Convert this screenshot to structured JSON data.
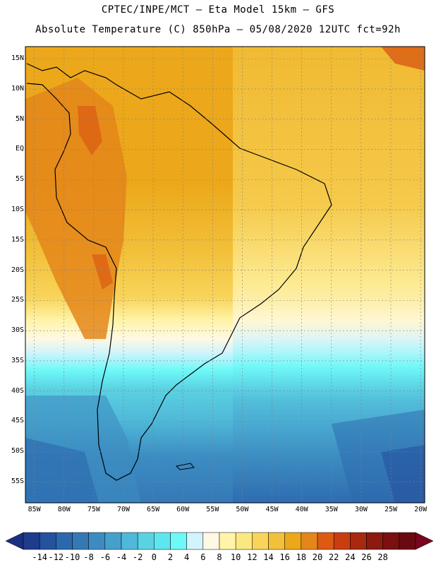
{
  "header": {
    "line1": "CPTEC/INPE/MCT –  Eta Model 15km – GFS",
    "line2": "Absolute Temperature (C) 850hPa – 05/08/2020 12UTC fct=92h"
  },
  "map": {
    "lat_ticks": [
      "15N",
      "10N",
      "5N",
      "EQ",
      "5S",
      "10S",
      "15S",
      "20S",
      "25S",
      "30S",
      "35S",
      "40S",
      "45S",
      "50S",
      "55S"
    ],
    "lon_ticks": [
      "85W",
      "80W",
      "75W",
      "70W",
      "65W",
      "60W",
      "55W",
      "50W",
      "45W",
      "40W",
      "35W",
      "30W",
      "25W",
      "20W"
    ],
    "lat_values": [
      15,
      10,
      5,
      0,
      -5,
      -10,
      -15,
      -20,
      -25,
      -30,
      -35,
      -40,
      -45,
      -50,
      -55
    ],
    "lon_values": [
      -85,
      -80,
      -75,
      -70,
      -65,
      -60,
      -55,
      -50,
      -45,
      -40,
      -35,
      -30,
      -25,
      -20
    ]
  },
  "colorbar": {
    "labels": [
      "-14",
      "-12",
      "-10",
      "-8",
      "-6",
      "-4",
      "-2",
      "0",
      "2",
      "4",
      "6",
      "8",
      "10",
      "12",
      "14",
      "16",
      "18",
      "20",
      "22",
      "24",
      "26",
      "28"
    ],
    "colors": [
      "#1e3c8c",
      "#24529e",
      "#2c68ae",
      "#3479b6",
      "#3c8cc2",
      "#46a0cc",
      "#50b8d8",
      "#5ad2e2",
      "#5ee6ee",
      "#6ef8f8",
      "#d2f4fc",
      "#fff8e2",
      "#fff4a8",
      "#fce882",
      "#f8d45a",
      "#f2c03a",
      "#eca81a",
      "#e4861a",
      "#dc5a12",
      "#c83e10",
      "#a82810",
      "#8c1a10",
      "#7a1010",
      "#6a0a10"
    ],
    "under_color": "#1a3080",
    "over_color": "#78061e"
  }
}
